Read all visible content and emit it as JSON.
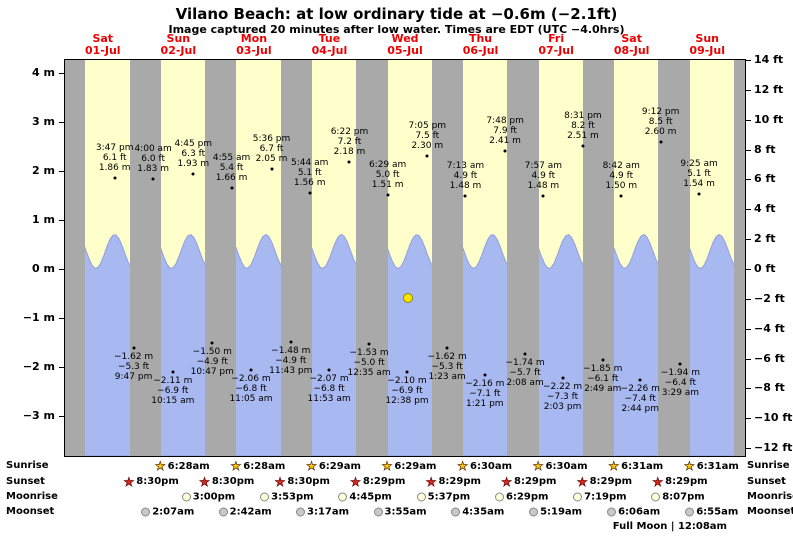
{
  "title": "Vilano Beach: at low  ordinary tide at −0.6m (−2.1ft)",
  "subtitle": "Image captured 20 minutes after low water. Times are EDT (UTC −4.0hrs)",
  "days": [
    {
      "name": "Sat",
      "date": "01-Jul"
    },
    {
      "name": "Sun",
      "date": "02-Jul"
    },
    {
      "name": "Mon",
      "date": "03-Jul"
    },
    {
      "name": "Tue",
      "date": "04-Jul"
    },
    {
      "name": "Wed",
      "date": "05-Jul"
    },
    {
      "name": "Thu",
      "date": "06-Jul"
    },
    {
      "name": "Fri",
      "date": "07-Jul"
    },
    {
      "name": "Sat",
      "date": "08-Jul"
    },
    {
      "name": "Sun",
      "date": "09-Jul"
    }
  ],
  "chart_data": {
    "type": "area",
    "title": "Vilano Beach tide height, 01-Jul to 09-Jul",
    "ylabel_left": "m",
    "ylabel_right": "ft",
    "y_left": {
      "unit": "m",
      "ticks": [
        4,
        3,
        2,
        1,
        0,
        -1,
        -2,
        -3
      ]
    },
    "y_right": {
      "unit": "ft",
      "ticks": [
        14,
        12,
        10,
        8,
        6,
        4,
        2,
        0,
        -2,
        -4,
        -6,
        -8,
        -10,
        -12
      ]
    },
    "high_tides": [
      {
        "day": 0,
        "time": "3:47 pm",
        "ft": 6.1,
        "m": 1.86
      },
      {
        "day": 1,
        "time": "4:00 am",
        "ft": 6.0,
        "m": 1.83
      },
      {
        "day": 1,
        "time": "4:45 pm",
        "ft": 6.3,
        "m": 1.93
      },
      {
        "day": 2,
        "time": "4:55 am",
        "ft": 5.4,
        "m": 1.66
      },
      {
        "day": 2,
        "time": "5:36 pm",
        "ft": 6.7,
        "m": 2.05
      },
      {
        "day": 3,
        "time": "5:44 am",
        "ft": 5.1,
        "m": 1.56
      },
      {
        "day": 3,
        "time": "6:22 pm",
        "ft": 7.2,
        "m": 2.18
      },
      {
        "day": 4,
        "time": "6:29 am",
        "ft": 5.0,
        "m": 1.51
      },
      {
        "day": 4,
        "time": "7:05 pm",
        "ft": 7.5,
        "m": 2.3
      },
      {
        "day": 5,
        "time": "7:13 am",
        "ft": 4.9,
        "m": 1.48
      },
      {
        "day": 5,
        "time": "7:48 pm",
        "ft": 7.9,
        "m": 2.41
      },
      {
        "day": 6,
        "time": "7:57 am",
        "ft": 4.9,
        "m": 1.48
      },
      {
        "day": 6,
        "time": "8:31 pm",
        "ft": 8.2,
        "m": 2.51
      },
      {
        "day": 7,
        "time": "8:42 am",
        "ft": 4.9,
        "m": 1.5
      },
      {
        "day": 7,
        "time": "9:12 pm",
        "ft": 8.5,
        "m": 2.6
      },
      {
        "day": 8,
        "time": "9:25 am",
        "ft": 5.1,
        "m": 1.54
      }
    ],
    "low_tides": [
      {
        "day": 0,
        "time": "9:47 pm",
        "ft": -5.3,
        "m": -1.62
      },
      {
        "day": 1,
        "time": "10:15 am",
        "ft": -6.9,
        "m": -2.11
      },
      {
        "day": 1,
        "time": "10:47 pm",
        "ft": -4.9,
        "m": -1.5
      },
      {
        "day": 2,
        "time": "11:05 am",
        "ft": -6.8,
        "m": -2.06
      },
      {
        "day": 2,
        "time": "11:43 pm",
        "ft": -4.9,
        "m": -1.48
      },
      {
        "day": 3,
        "time": "11:53 am",
        "ft": -6.8,
        "m": -2.07
      },
      {
        "day": 4,
        "time": "12:35 am",
        "ft": -5.0,
        "m": -1.53
      },
      {
        "day": 4,
        "time": "12:38 pm",
        "ft": -6.9,
        "m": -2.1
      },
      {
        "day": 5,
        "time": "1:23 am",
        "ft": -5.3,
        "m": -1.62
      },
      {
        "day": 5,
        "time": "1:21 pm",
        "ft": -7.1,
        "m": -2.16
      },
      {
        "day": 6,
        "time": "2:08 am",
        "ft": -5.7,
        "m": -1.74
      },
      {
        "day": 6,
        "time": "2:03 pm",
        "ft": -7.3,
        "m": -2.22
      },
      {
        "day": 7,
        "time": "2:49 am",
        "ft": -6.1,
        "m": -1.85
      },
      {
        "day": 7,
        "time": "2:44 pm",
        "ft": -7.4,
        "m": -2.26
      },
      {
        "day": 8,
        "time": "3:29 am",
        "ft": -6.4,
        "m": -1.94
      }
    ],
    "current_marker": {
      "height_m": -0.6,
      "height_ft": -2.1,
      "day": 4,
      "time": "12:58 pm"
    }
  },
  "astro": {
    "rows": [
      {
        "id": "sunrise",
        "label": "Sunrise",
        "icon": "sunrise-star-icon",
        "entries": [
          {
            "day": 1,
            "time": "6:28am"
          },
          {
            "day": 2,
            "time": "6:28am"
          },
          {
            "day": 3,
            "time": "6:29am"
          },
          {
            "day": 4,
            "time": "6:29am"
          },
          {
            "day": 5,
            "time": "6:30am"
          },
          {
            "day": 6,
            "time": "6:30am"
          },
          {
            "day": 7,
            "time": "6:31am"
          },
          {
            "day": 8,
            "time": "6:31am"
          }
        ]
      },
      {
        "id": "sunset",
        "label": "Sunset",
        "icon": "sunset-star-icon",
        "entries": [
          {
            "day": 0,
            "time": "8:30pm"
          },
          {
            "day": 1,
            "time": "8:30pm"
          },
          {
            "day": 2,
            "time": "8:30pm"
          },
          {
            "day": 3,
            "time": "8:29pm"
          },
          {
            "day": 4,
            "time": "8:29pm"
          },
          {
            "day": 5,
            "time": "8:29pm"
          },
          {
            "day": 6,
            "time": "8:29pm"
          },
          {
            "day": 7,
            "time": "8:29pm"
          }
        ]
      },
      {
        "id": "moonrise",
        "label": "Moonrise",
        "icon": "moonrise-icon",
        "entries": [
          {
            "day": 1,
            "time": "3:00pm"
          },
          {
            "day": 2,
            "time": "3:53pm"
          },
          {
            "day": 3,
            "time": "4:45pm"
          },
          {
            "day": 4,
            "time": "5:37pm"
          },
          {
            "day": 5,
            "time": "6:29pm"
          },
          {
            "day": 6,
            "time": "7:19pm"
          },
          {
            "day": 7,
            "time": "8:07pm"
          }
        ]
      },
      {
        "id": "moonset",
        "label": "Moonset",
        "icon": "moonset-icon",
        "entries": [
          {
            "day": 1,
            "time": "2:07am"
          },
          {
            "day": 2,
            "time": "2:42am"
          },
          {
            "day": 3,
            "time": "3:17am"
          },
          {
            "day": 4,
            "time": "3:55am"
          },
          {
            "day": 5,
            "time": "4:35am"
          },
          {
            "day": 6,
            "time": "5:19am"
          },
          {
            "day": 7,
            "time": "6:06am"
          },
          {
            "day": 8,
            "time": "6:55am"
          }
        ]
      }
    ],
    "footnote": {
      "text": "Full Moon | 12:08am",
      "day": 8,
      "time": "12:08am"
    }
  },
  "colors": {
    "day_background": "#ffffcc",
    "night_background": "#a9a9a9",
    "tide_fill": "#a8b8f0",
    "tide_stroke": "#8fa0dd",
    "current_marker_fill": "#ffe400",
    "current_marker_border": "#8a8a00",
    "day_label_red": "#ee0000",
    "sunrise_star": "#ffc800",
    "sunset_star": "#e02818",
    "moonrise_fill": "#ffffd8",
    "moonset_fill": "#c8c8c8"
  }
}
